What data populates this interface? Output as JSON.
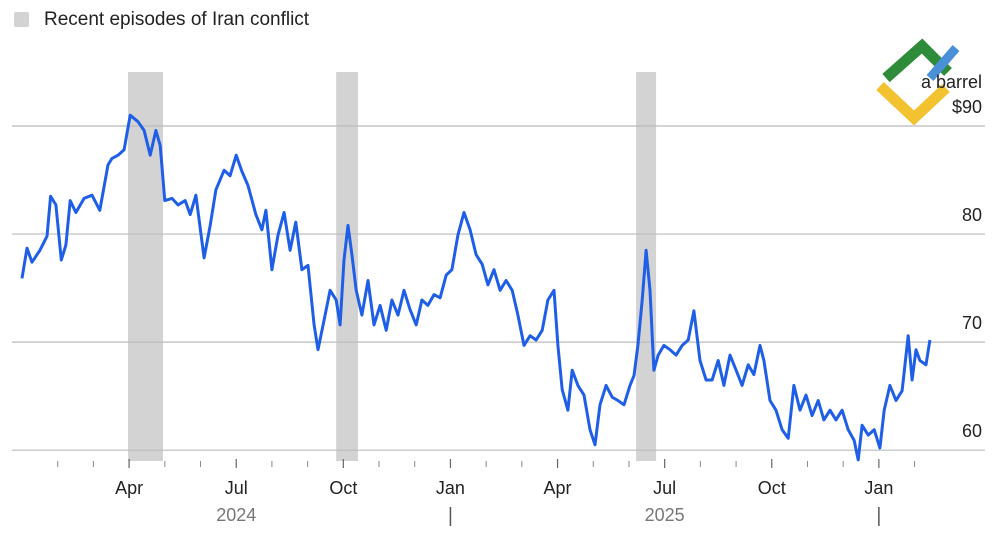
{
  "chart_data": {
    "type": "line",
    "legend_label": "Recent episodes of Iran conflict",
    "y_unit_label": "a barrel",
    "episodes": [
      [
        2.97,
        3.95
      ],
      [
        8.8,
        9.41
      ],
      [
        17.2,
        17.76
      ]
    ],
    "episode_color": "#d3d3d3",
    "xlim": [
      0,
      25.6
    ],
    "xticks": [
      {
        "value": 3,
        "label": "Apr"
      },
      {
        "value": 6,
        "label": "Jul"
      },
      {
        "value": 9,
        "label": "Oct"
      },
      {
        "value": 12,
        "label": "Jan"
      },
      {
        "value": 15,
        "label": "Apr"
      },
      {
        "value": 18,
        "label": "Jul"
      },
      {
        "value": 21,
        "label": "Oct"
      },
      {
        "value": 24,
        "label": "Jan"
      }
    ],
    "xminorticks": [
      1,
      2,
      4,
      5,
      7,
      8,
      10,
      11,
      13,
      14,
      16,
      17,
      19,
      20,
      22,
      23,
      25
    ],
    "year_labels": [
      {
        "value": 6,
        "label": "2024"
      },
      {
        "value": 18,
        "label": "2025"
      }
    ],
    "year_dividers": [
      12,
      24
    ],
    "ylim": [
      59,
      95
    ],
    "yticks": [
      {
        "value": 90,
        "label": "$90"
      },
      80,
      70,
      60
    ],
    "grid": true,
    "series": [
      {
        "color": "#1f5fe8",
        "x": [
          0,
          0.14,
          0.28,
          0.5,
          0.7,
          0.8,
          0.95,
          1.1,
          1.23,
          1.35,
          1.51,
          1.74,
          1.96,
          2.18,
          2.41,
          2.52,
          2.69,
          2.86,
          3.03,
          3.25,
          3.42,
          3.59,
          3.75,
          3.87,
          4.0,
          4.2,
          4.37,
          4.57,
          4.71,
          4.87,
          5.1,
          5.27,
          5.43,
          5.66,
          5.83,
          6.0,
          6.16,
          6.33,
          6.55,
          6.72,
          6.83,
          7.0,
          7.17,
          7.34,
          7.51,
          7.67,
          7.84,
          8.01,
          8.18,
          8.29,
          8.46,
          8.63,
          8.8,
          8.91,
          9.02,
          9.13,
          9.24,
          9.36,
          9.52,
          9.69,
          9.86,
          10.03,
          10.2,
          10.36,
          10.53,
          10.7,
          10.87,
          11.04,
          11.2,
          11.37,
          11.54,
          11.71,
          11.88,
          12.04,
          12.21,
          12.38,
          12.55,
          12.72,
          12.89,
          13.05,
          13.22,
          13.39,
          13.56,
          13.73,
          13.89,
          14.06,
          14.23,
          14.4,
          14.57,
          14.73,
          14.9,
          15.01,
          15.13,
          15.29,
          15.41,
          15.57,
          15.74,
          15.91,
          16.05,
          16.19,
          16.36,
          16.53,
          16.69,
          16.86,
          17.03,
          17.14,
          17.25,
          17.37,
          17.48,
          17.59,
          17.7,
          17.82,
          17.98,
          18.15,
          18.32,
          18.49,
          18.66,
          18.82,
          18.99,
          19.16,
          19.33,
          19.5,
          19.66,
          19.83,
          20.0,
          20.17,
          20.34,
          20.5,
          20.67,
          20.78,
          20.95,
          21.12,
          21.29,
          21.46,
          21.62,
          21.79,
          21.96,
          22.13,
          22.3,
          22.46,
          22.63,
          22.8,
          22.97,
          23.14,
          23.31,
          23.42,
          23.53,
          23.7,
          23.87,
          24.03,
          24.15,
          24.31,
          24.48,
          24.65,
          24.82,
          24.93,
          25.04,
          25.15,
          25.32,
          25.43
        ],
        "values": [
          75.9,
          78.7,
          77.4,
          78.5,
          79.8,
          83.5,
          82.7,
          77.6,
          79.0,
          83.1,
          82.0,
          83.3,
          83.6,
          82.2,
          86.4,
          87.0,
          87.3,
          87.8,
          91.0,
          90.4,
          89.6,
          87.3,
          89.6,
          88.2,
          83.1,
          83.3,
          82.7,
          83.1,
          81.8,
          83.6,
          77.8,
          80.8,
          84.1,
          85.9,
          85.4,
          87.3,
          85.8,
          84.5,
          81.8,
          80.4,
          82.2,
          76.7,
          79.9,
          82.0,
          78.5,
          81.1,
          76.7,
          77.1,
          71.6,
          69.3,
          72.0,
          74.8,
          73.9,
          71.6,
          77.6,
          80.8,
          78.1,
          74.8,
          72.5,
          75.7,
          71.6,
          73.4,
          71.1,
          73.9,
          72.5,
          74.8,
          73.0,
          71.6,
          73.9,
          73.4,
          74.4,
          74.1,
          76.2,
          76.7,
          79.9,
          82.0,
          80.4,
          78.1,
          77.2,
          75.3,
          76.7,
          74.8,
          75.7,
          74.8,
          72.5,
          69.7,
          70.6,
          70.2,
          71.1,
          73.9,
          74.8,
          69.7,
          65.6,
          63.7,
          67.4,
          66.0,
          65.1,
          61.9,
          60.5,
          64.2,
          66.0,
          64.9,
          64.6,
          64.2,
          66.0,
          66.9,
          69.7,
          73.9,
          78.5,
          74.8,
          67.4,
          68.8,
          69.7,
          69.3,
          68.8,
          69.7,
          70.2,
          72.9,
          68.3,
          66.5,
          66.5,
          68.3,
          66.0,
          68.8,
          67.4,
          66.0,
          67.9,
          67.0,
          69.7,
          68.3,
          64.6,
          63.7,
          61.9,
          61.1,
          66.0,
          63.7,
          65.1,
          63.2,
          64.6,
          62.8,
          63.7,
          62.8,
          63.7,
          61.9,
          60.9,
          59.1,
          62.3,
          61.4,
          61.9,
          60.2,
          63.7,
          66.0,
          64.6,
          65.5,
          70.6,
          66.5,
          69.3,
          68.3,
          67.9,
          70.2
        ]
      }
    ]
  }
}
